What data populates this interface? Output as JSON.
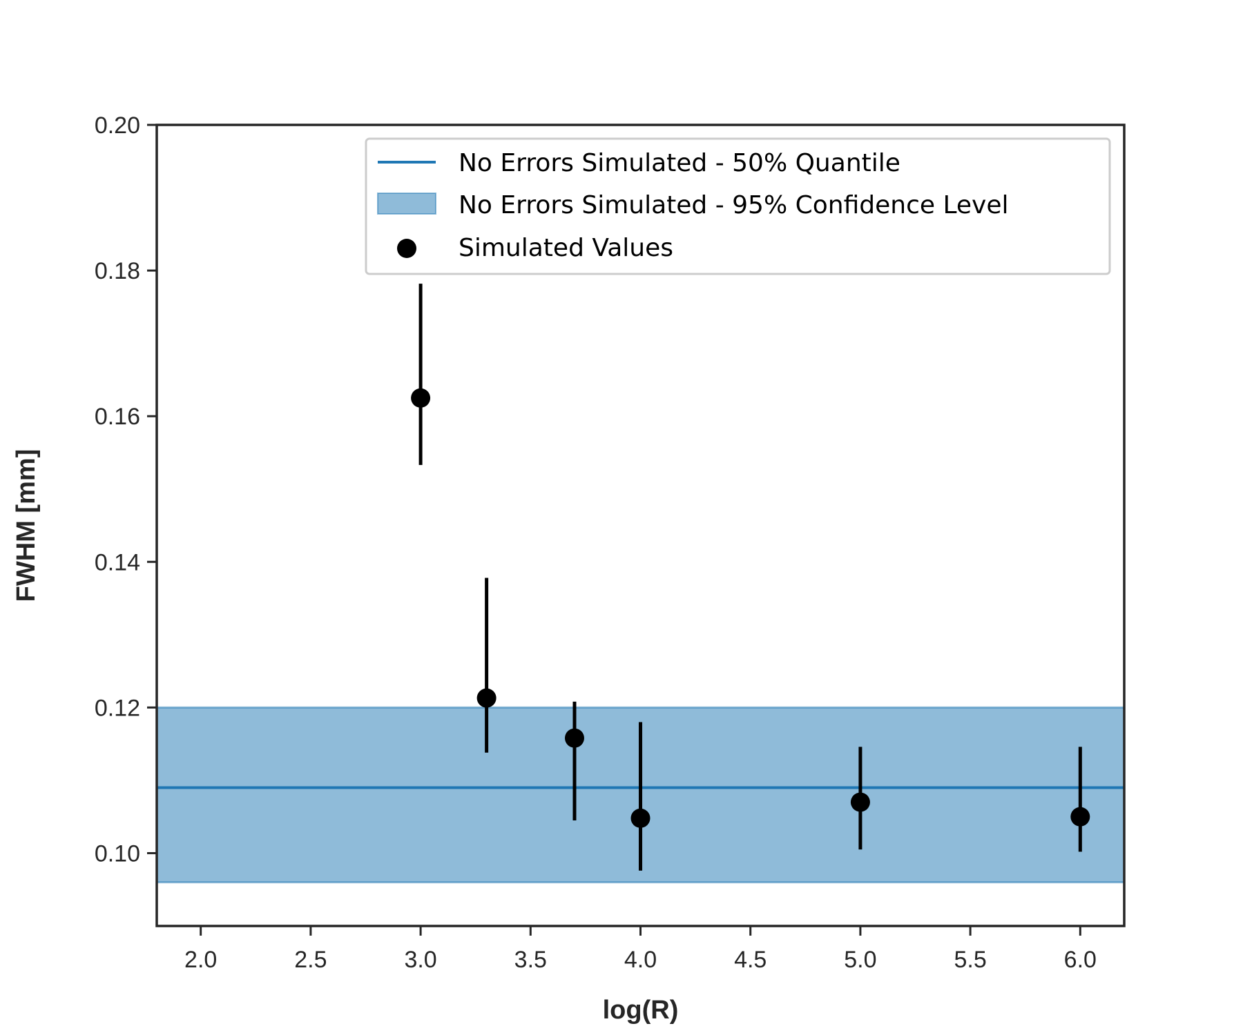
{
  "chart_data": {
    "type": "scatter",
    "title": "",
    "xlabel": "log(R)",
    "ylabel": "FWHM [mm]",
    "xlim": [
      1.8,
      6.2
    ],
    "ylim": [
      0.09,
      0.2
    ],
    "xticks": [
      2.0,
      2.5,
      3.0,
      3.5,
      4.0,
      4.5,
      5.0,
      5.5,
      6.0
    ],
    "yticks": [
      0.1,
      0.12,
      0.14,
      0.16,
      0.18,
      0.2
    ],
    "grid": false,
    "legend_position": "top-right",
    "reference": {
      "median": {
        "name": "No Errors Simulated - 50% Quantile",
        "y": 0.109,
        "color": "#1f77b4"
      },
      "band": {
        "name": "No Errors Simulated - 95% Confidence Level",
        "y_low": 0.096,
        "y_high": 0.12,
        "color": "#1f77b4"
      }
    },
    "series": [
      {
        "name": "Simulated Values",
        "color": "#000000",
        "points": [
          {
            "x": 3.0,
            "y": 0.1625,
            "y_low": 0.1533,
            "y_high": 0.1782
          },
          {
            "x": 3.3,
            "y": 0.1213,
            "y_low": 0.1138,
            "y_high": 0.1378
          },
          {
            "x": 3.7,
            "y": 0.1158,
            "y_low": 0.1045,
            "y_high": 0.1208
          },
          {
            "x": 4.0,
            "y": 0.1048,
            "y_low": 0.0976,
            "y_high": 0.118
          },
          {
            "x": 5.0,
            "y": 0.107,
            "y_low": 0.1005,
            "y_high": 0.1146
          },
          {
            "x": 6.0,
            "y": 0.105,
            "y_low": 0.1002,
            "y_high": 0.1146
          }
        ]
      }
    ]
  }
}
